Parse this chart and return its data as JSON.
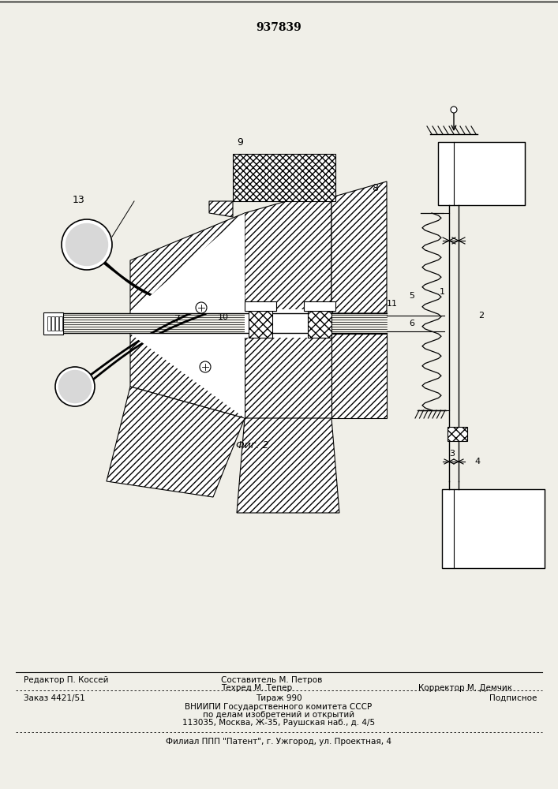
{
  "patent_number": "937839",
  "bg": "#f0efe8",
  "body_fontsize": 7.5,
  "footer": {
    "line1_left": "Редактор П. Коссей",
    "line1_center": "Составитель М. Петров",
    "line2_center": "Техред М. Тепер",
    "line2_right": "Корректор М. Демчик",
    "line3_left": "Заказ 4421/51",
    "line3_center": "Тираж 990",
    "line3_right": "Подписное",
    "line4": "ВНИИПИ Государственного комитета СССР",
    "line5": "по делам изобретений и открытий",
    "line6": "113035, Москва, Ж-35, Раушская наб., д. 4/5",
    "line7": "Филиал ППП \"Патент\", г. Ужгород, ул. Проектная, 4"
  }
}
